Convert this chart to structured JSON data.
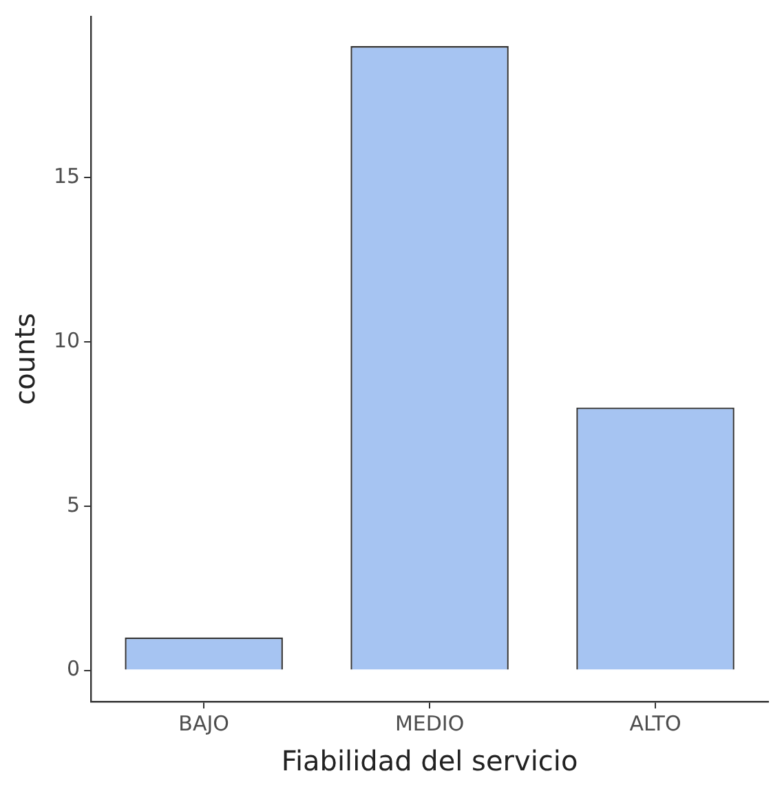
{
  "chart_data": {
    "type": "bar",
    "xlabel": "Fiabilidad del servicio",
    "ylabel": "counts",
    "categories": [
      "BAJO",
      "MEDIO",
      "ALTO"
    ],
    "values": [
      1,
      19,
      8
    ],
    "color": "#a6c4f2",
    "ylim": [
      -0.95,
      19.9
    ],
    "yticks": [
      0,
      5,
      10,
      15
    ],
    "grid": false,
    "legend": false
  }
}
